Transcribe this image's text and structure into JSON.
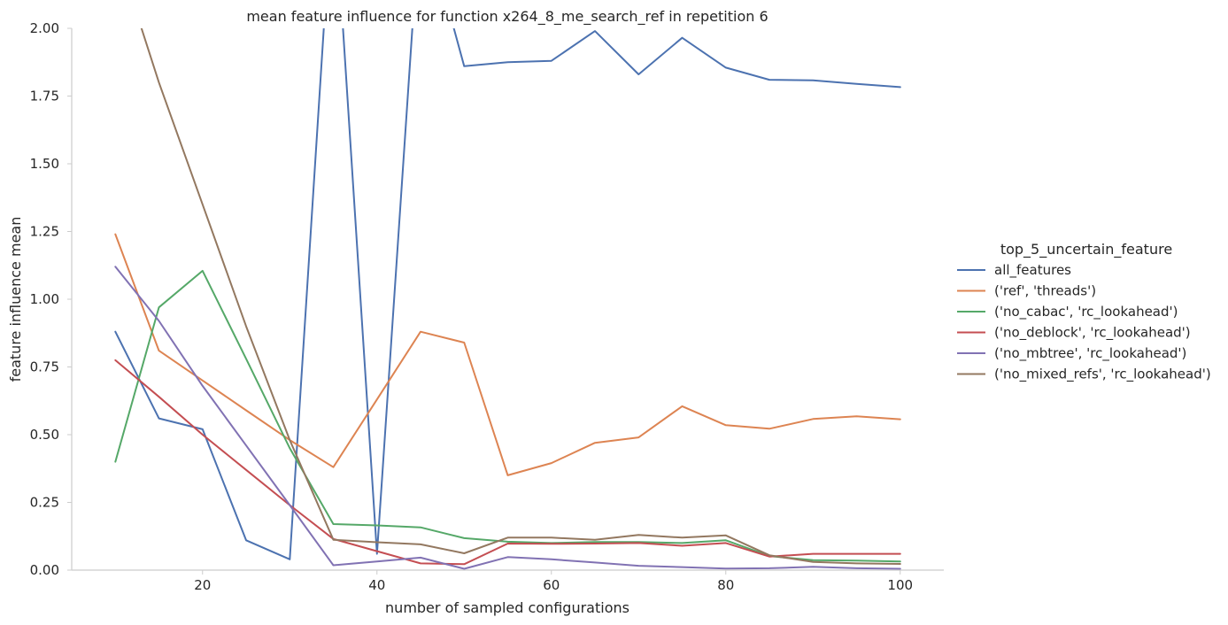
{
  "chart_data": {
    "type": "line",
    "title": "mean feature influence for function x264_8_me_search_ref in repetition 6",
    "xlabel": "number of sampled configurations",
    "ylabel": "feature influence mean",
    "xlim": [
      5,
      105
    ],
    "ylim": [
      0,
      2.0
    ],
    "xticks": [
      20,
      40,
      60,
      80,
      100
    ],
    "yticks": [
      0.0,
      0.25,
      0.5,
      0.75,
      1.0,
      1.25,
      1.5,
      1.75,
      2.0
    ],
    "ytick_labels": [
      "0.00",
      "0.25",
      "0.50",
      "0.75",
      "1.00",
      "1.25",
      "1.50",
      "1.75",
      "2.00"
    ],
    "grid": false,
    "legend": {
      "title": "top_5_uncertain_feature",
      "placement": "right"
    },
    "x": [
      10,
      15,
      20,
      25,
      30,
      35,
      40,
      45,
      50,
      55,
      60,
      65,
      70,
      75,
      80,
      85,
      90,
      95,
      100
    ],
    "series": [
      {
        "name": "all_features",
        "color": "#4c72b0",
        "values": [
          0.88,
          0.56,
          0.52,
          0.11,
          0.04,
          2.55,
          0.06,
          2.45,
          1.86,
          1.875,
          1.88,
          1.99,
          1.83,
          1.965,
          1.855,
          1.81,
          1.808,
          1.795,
          1.783
        ]
      },
      {
        "name": "('ref', 'threads')",
        "color": "#dd8452",
        "values": [
          1.24,
          0.81,
          0.7,
          0.59,
          0.48,
          0.38,
          0.63,
          0.88,
          0.84,
          0.35,
          0.395,
          0.47,
          0.49,
          0.605,
          0.535,
          0.522,
          0.558,
          0.568,
          0.557
        ]
      },
      {
        "name": "('no_cabac', 'rc_lookahead')",
        "color": "#55a868",
        "values": [
          0.4,
          0.97,
          1.105,
          0.78,
          0.45,
          0.17,
          0.165,
          0.158,
          0.118,
          0.105,
          0.1,
          0.104,
          0.104,
          0.1,
          0.11,
          0.052,
          0.037,
          0.035,
          0.032
        ]
      },
      {
        "name": "('no_deblock', 'rc_lookahead')",
        "color": "#c44e52",
        "values": [
          0.775,
          0.64,
          0.5,
          0.37,
          0.24,
          0.115,
          0.07,
          0.025,
          0.022,
          0.098,
          0.097,
          0.098,
          0.1,
          0.09,
          0.1,
          0.05,
          0.06,
          0.06,
          0.06
        ]
      },
      {
        "name": "('no_mbtree', 'rc_lookahead')",
        "color": "#8172b3",
        "values": [
          1.12,
          0.92,
          0.68,
          0.46,
          0.24,
          0.018,
          0.032,
          0.046,
          0.005,
          0.048,
          0.04,
          0.028,
          0.016,
          0.011,
          0.006,
          0.007,
          0.012,
          0.007,
          0.005
        ]
      },
      {
        "name": "('no_mixed_refs', 'rc_lookahead')",
        "color": "#937860",
        "values": [
          2.3,
          1.8,
          1.35,
          0.9,
          0.48,
          0.112,
          0.103,
          0.095,
          0.062,
          0.12,
          0.12,
          0.112,
          0.13,
          0.12,
          0.128,
          0.055,
          0.03,
          0.025,
          0.023
        ]
      }
    ]
  }
}
